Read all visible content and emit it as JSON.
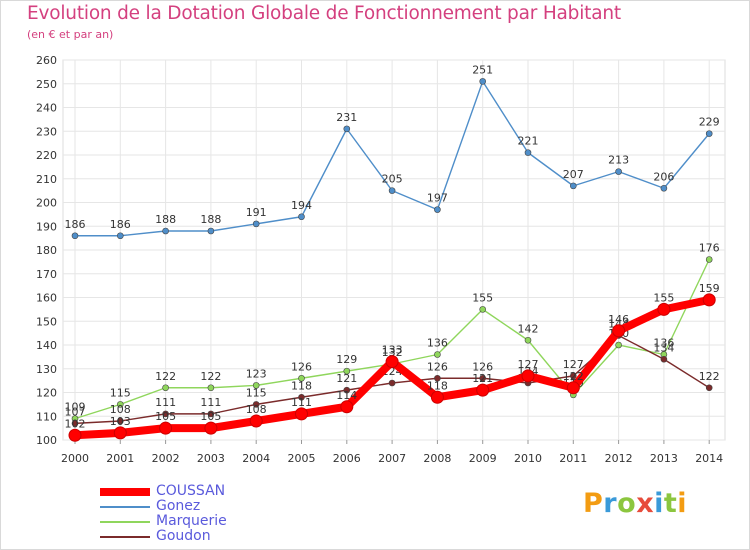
{
  "title": "Evolution de la Dotation Globale de Fonctionnement par Habitant",
  "subtitle": "(en € et par an)",
  "logo": {
    "text": "Proxiti",
    "letters": [
      {
        "ch": "P",
        "color": "#f39c12"
      },
      {
        "ch": "r",
        "color": "#3a9ad9"
      },
      {
        "ch": "o",
        "color": "#8cc63f"
      },
      {
        "ch": "x",
        "color": "#e74c3c"
      },
      {
        "ch": "i",
        "color": "#3a9ad9"
      },
      {
        "ch": "t",
        "color": "#8cc63f"
      },
      {
        "ch": "i",
        "color": "#f39c12"
      }
    ]
  },
  "chart_data": {
    "type": "line",
    "title": "Evolution de la Dotation Globale de Fonctionnement par Habitant",
    "subtitle": "(en € et par an)",
    "x": [
      "2000",
      "2001",
      "2002",
      "2003",
      "2004",
      "2005",
      "2006",
      "2007",
      "2008",
      "2009",
      "2010",
      "2011",
      "2012",
      "2013",
      "2014"
    ],
    "ylim": [
      100,
      260
    ],
    "yticks": [
      100,
      110,
      120,
      130,
      140,
      150,
      160,
      170,
      180,
      190,
      200,
      210,
      220,
      230,
      240,
      250,
      260
    ],
    "grid": true,
    "legend_position": "bottom-left",
    "series": [
      {
        "name": "COUSSAN",
        "color": "#ff0000",
        "emphasis": true,
        "values": [
          102,
          103,
          105,
          105,
          108,
          111,
          114,
          133,
          118,
          121,
          127,
          122,
          146,
          155,
          159
        ],
        "labels": [
          "102",
          "103",
          "105",
          "105",
          "108",
          "111",
          "114",
          "133",
          "118",
          "121",
          "127",
          "122",
          "146",
          "155",
          "159"
        ]
      },
      {
        "name": "Gonez",
        "color": "#4f8ec9",
        "values": [
          186,
          186,
          188,
          188,
          191,
          194,
          231,
          205,
          197,
          251,
          221,
          207,
          213,
          206,
          229
        ],
        "labels": [
          "186",
          "186",
          "188",
          "188",
          "191",
          "194",
          "231",
          "205",
          "197",
          "251",
          "221",
          "207",
          "213",
          "206",
          "229"
        ]
      },
      {
        "name": "Marquerie",
        "color": "#8fd65c",
        "values": [
          109,
          115,
          122,
          122,
          123,
          126,
          129,
          132,
          136,
          155,
          142,
          119,
          140,
          136,
          176
        ],
        "labels": [
          "109",
          "115",
          "122",
          "122",
          "123",
          "126",
          "129",
          "132",
          "136",
          "155",
          "142",
          "119",
          "140",
          "136",
          "176"
        ]
      },
      {
        "name": "Goudon",
        "color": "#7b2b2b",
        "values": [
          107,
          108,
          111,
          111,
          115,
          118,
          121,
          124,
          126,
          126,
          124,
          127,
          144,
          134,
          122
        ],
        "labels": [
          "107",
          "108",
          "111",
          "111",
          "115",
          "118",
          "121",
          "124",
          "126",
          "126",
          "124",
          "127",
          "144",
          "134",
          "122"
        ]
      }
    ]
  }
}
